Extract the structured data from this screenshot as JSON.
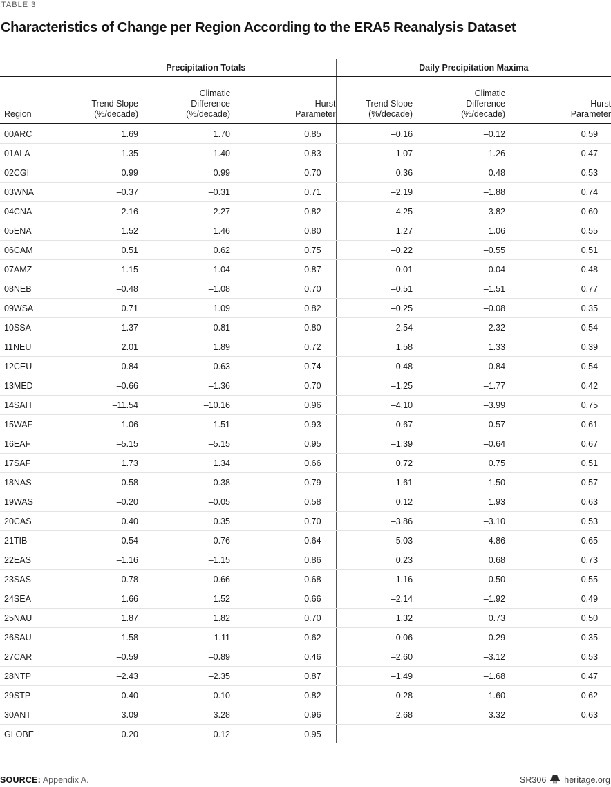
{
  "header": {
    "table_label": "TABLE 3",
    "title": "Characteristics of Change per Region According to the ERA5 Reanalysis Dataset"
  },
  "table": {
    "groups": [
      "Precipitation Totals",
      "Daily Precipitation Maxima"
    ],
    "columns": [
      "Region",
      "Trend Slope\n(%/decade)",
      "Climatic\nDifference\n(%/decade)",
      "Hurst\nParameter",
      "Trend Slope\n(%/decade)",
      "Climatic\nDifference\n(%/decade)",
      "Hurst\nParameter"
    ],
    "rows": [
      {
        "region": "00ARC",
        "values": [
          "1.69",
          "1.70",
          "0.85",
          "–0.16",
          "–0.12",
          "0.59"
        ]
      },
      {
        "region": "01ALA",
        "values": [
          "1.35",
          "1.40",
          "0.83",
          "1.07",
          "1.26",
          "0.47"
        ]
      },
      {
        "region": "02CGI",
        "values": [
          "0.99",
          "0.99",
          "0.70",
          "0.36",
          "0.48",
          "0.53"
        ]
      },
      {
        "region": "03WNA",
        "values": [
          "–0.37",
          "–0.31",
          "0.71",
          "–2.19",
          "–1.88",
          "0.74"
        ]
      },
      {
        "region": "04CNA",
        "values": [
          "2.16",
          "2.27",
          "0.82",
          "4.25",
          "3.82",
          "0.60"
        ]
      },
      {
        "region": "05ENA",
        "values": [
          "1.52",
          "1.46",
          "0.80",
          "1.27",
          "1.06",
          "0.55"
        ]
      },
      {
        "region": "06CAM",
        "values": [
          "0.51",
          "0.62",
          "0.75",
          "–0.22",
          "–0.55",
          "0.51"
        ]
      },
      {
        "region": "07AMZ",
        "values": [
          "1.15",
          "1.04",
          "0.87",
          "0.01",
          "0.04",
          "0.48"
        ]
      },
      {
        "region": "08NEB",
        "values": [
          "–0.48",
          "–1.08",
          "0.70",
          "–0.51",
          "–1.51",
          "0.77"
        ]
      },
      {
        "region": "09WSA",
        "values": [
          "0.71",
          "1.09",
          "0.82",
          "–0.25",
          "–0.08",
          "0.35"
        ]
      },
      {
        "region": "10SSA",
        "values": [
          "–1.37",
          "–0.81",
          "0.80",
          "–2.54",
          "–2.32",
          "0.54"
        ]
      },
      {
        "region": "11NEU",
        "values": [
          "2.01",
          "1.89",
          "0.72",
          "1.58",
          "1.33",
          "0.39"
        ]
      },
      {
        "region": "12CEU",
        "values": [
          "0.84",
          "0.63",
          "0.74",
          "–0.48",
          "–0.84",
          "0.54"
        ]
      },
      {
        "region": "13MED",
        "values": [
          "–0.66",
          "–1.36",
          "0.70",
          "–1.25",
          "–1.77",
          "0.42"
        ]
      },
      {
        "region": "14SAH",
        "values": [
          "–11.54",
          "–10.16",
          "0.96",
          "–4.10",
          "–3.99",
          "0.75"
        ]
      },
      {
        "region": "15WAF",
        "values": [
          "–1.06",
          "–1.51",
          "0.93",
          "0.67",
          "0.57",
          "0.61"
        ]
      },
      {
        "region": "16EAF",
        "values": [
          "–5.15",
          "–5.15",
          "0.95",
          "–1.39",
          "–0.64",
          "0.67"
        ]
      },
      {
        "region": "17SAF",
        "values": [
          "1.73",
          "1.34",
          "0.66",
          "0.72",
          "0.75",
          "0.51"
        ]
      },
      {
        "region": "18NAS",
        "values": [
          "0.58",
          "0.38",
          "0.79",
          "1.61",
          "1.50",
          "0.57"
        ]
      },
      {
        "region": "19WAS",
        "values": [
          "–0.20",
          "–0.05",
          "0.58",
          "0.12",
          "1.93",
          "0.63"
        ]
      },
      {
        "region": "20CAS",
        "values": [
          "0.40",
          "0.35",
          "0.70",
          "–3.86",
          "–3.10",
          "0.53"
        ]
      },
      {
        "region": "21TIB",
        "values": [
          "0.54",
          "0.76",
          "0.64",
          "–5.03",
          "–4.86",
          "0.65"
        ]
      },
      {
        "region": "22EAS",
        "values": [
          "–1.16",
          "–1.15",
          "0.86",
          "0.23",
          "0.68",
          "0.73"
        ]
      },
      {
        "region": "23SAS",
        "values": [
          "–0.78",
          "–0.66",
          "0.68",
          "–1.16",
          "–0.50",
          "0.55"
        ]
      },
      {
        "region": "24SEA",
        "values": [
          "1.66",
          "1.52",
          "0.66",
          "–2.14",
          "–1.92",
          "0.49"
        ]
      },
      {
        "region": "25NAU",
        "values": [
          "1.87",
          "1.82",
          "0.70",
          "1.32",
          "0.73",
          "0.50"
        ]
      },
      {
        "region": "26SAU",
        "values": [
          "1.58",
          "1.11",
          "0.62",
          "–0.06",
          "–0.29",
          "0.35"
        ]
      },
      {
        "region": "27CAR",
        "values": [
          "–0.59",
          "–0.89",
          "0.46",
          "–2.60",
          "–3.12",
          "0.53"
        ]
      },
      {
        "region": "28NTP",
        "values": [
          "–2.43",
          "–2.35",
          "0.87",
          "–1.49",
          "–1.68",
          "0.47"
        ]
      },
      {
        "region": "29STP",
        "values": [
          "0.40",
          "0.10",
          "0.82",
          "–0.28",
          "–1.60",
          "0.62"
        ]
      },
      {
        "region": "30ANT",
        "values": [
          "3.09",
          "3.28",
          "0.96",
          "2.68",
          "3.32",
          "0.63"
        ]
      },
      {
        "region": "GLOBE",
        "values": [
          "0.20",
          "0.12",
          "0.95",
          "",
          "",
          ""
        ]
      }
    ]
  },
  "footer": {
    "source_label": "SOURCE:",
    "source_text": "Appendix A.",
    "report_id": "SR306",
    "logo_icon": "liberty-bell-icon",
    "site": "heritage.org"
  },
  "colors": {
    "text": "#1c1c1e",
    "muted_gray": "#58585a",
    "heavy_rule": "#1a1a1a",
    "row_rule": "#e3e3e3",
    "column_divider": "#525252"
  }
}
